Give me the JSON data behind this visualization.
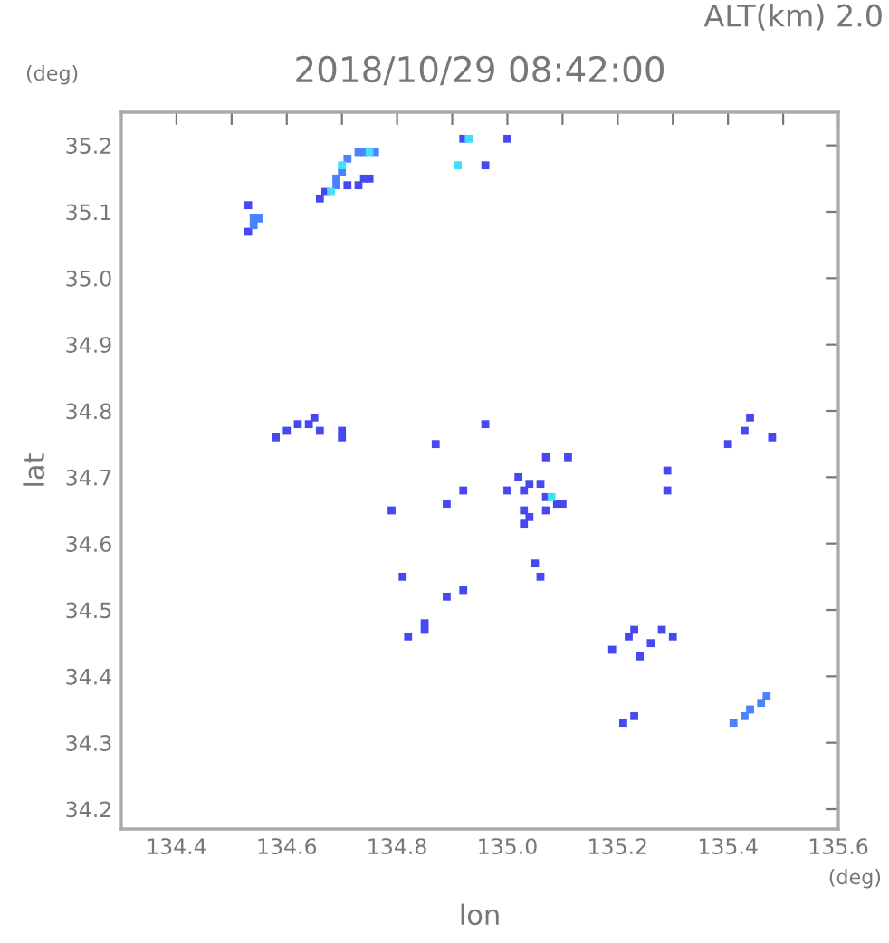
{
  "chart_data": {
    "type": "scatter",
    "title": "2018/10/29 08:42:00",
    "xlabel": "lon",
    "ylabel": "lat",
    "annotations": [
      "ALT(km) 2.0",
      "(deg)",
      "(deg)"
    ],
    "xlim": [
      134.3,
      135.6
    ],
    "ylim": [
      34.17,
      35.25
    ],
    "xticks": [
      134.4,
      {
        "value": 134.5,
        "label": null
      },
      134.6,
      {
        "value": 134.7,
        "label": null
      },
      134.8,
      {
        "value": 134.9,
        "label": null
      },
      "135.0",
      {
        "value": 135.1,
        "label": null
      },
      135.2,
      {
        "value": 135.3,
        "label": null
      },
      135.4,
      {
        "value": 135.5,
        "label": null
      },
      135.6
    ],
    "yticks": [
      34.2,
      34.3,
      34.4,
      34.5,
      34.6,
      34.7,
      34.8,
      34.9,
      "35.0",
      35.1,
      35.2
    ],
    "marker": "square",
    "grid": false,
    "legend": false,
    "series": [
      {
        "color": "#4848f0",
        "x": [
          134.53,
          134.53,
          134.66,
          134.67,
          134.71,
          134.73,
          134.74,
          134.75,
          134.92,
          135.0,
          134.96,
          134.58,
          134.6,
          134.62,
          134.64,
          134.65,
          134.66,
          134.7,
          134.7,
          134.87,
          134.96,
          134.79,
          134.89,
          134.92,
          134.81,
          134.89,
          134.92,
          134.85,
          134.85,
          134.82,
          135.0,
          135.02,
          135.03,
          135.04,
          135.06,
          135.07,
          135.09,
          135.1,
          135.03,
          135.04,
          135.07,
          135.03,
          135.07,
          135.11,
          135.05,
          135.06,
          135.29,
          135.29,
          135.44,
          135.43,
          135.4,
          135.48,
          135.23,
          135.22,
          135.28,
          135.3,
          135.19,
          135.24,
          135.26,
          135.21,
          135.23
        ],
        "values": [
          35.11,
          35.07,
          35.12,
          35.13,
          35.14,
          35.14,
          35.15,
          35.15,
          35.21,
          35.21,
          35.17,
          34.76,
          34.77,
          34.78,
          34.78,
          34.79,
          34.77,
          34.77,
          34.76,
          34.75,
          34.78,
          34.65,
          34.66,
          34.68,
          34.55,
          34.52,
          34.53,
          34.48,
          34.47,
          34.46,
          34.68,
          34.7,
          34.68,
          34.69,
          34.69,
          34.67,
          34.66,
          34.66,
          34.65,
          34.64,
          34.65,
          34.63,
          34.73,
          34.73,
          34.57,
          34.55,
          34.71,
          34.68,
          34.79,
          34.77,
          34.75,
          34.76,
          34.47,
          34.46,
          34.47,
          34.46,
          34.44,
          34.43,
          34.45,
          34.33,
          34.34
        ]
      },
      {
        "color": "#4a82ff",
        "x": [
          134.54,
          134.55,
          134.54,
          134.69,
          134.69,
          134.7,
          134.71,
          134.73,
          134.74,
          134.76,
          135.41,
          135.43,
          135.44,
          135.46,
          135.47
        ],
        "values": [
          35.09,
          35.09,
          35.08,
          35.14,
          35.15,
          35.16,
          35.18,
          35.19,
          35.19,
          35.19,
          34.33,
          34.34,
          34.35,
          34.36,
          34.37
        ]
      },
      {
        "color": "#44ddff",
        "x": [
          134.7,
          134.75,
          134.68,
          134.93,
          134.91,
          135.08
        ],
        "values": [
          35.17,
          35.19,
          35.13,
          35.21,
          35.17,
          34.67
        ]
      }
    ]
  }
}
